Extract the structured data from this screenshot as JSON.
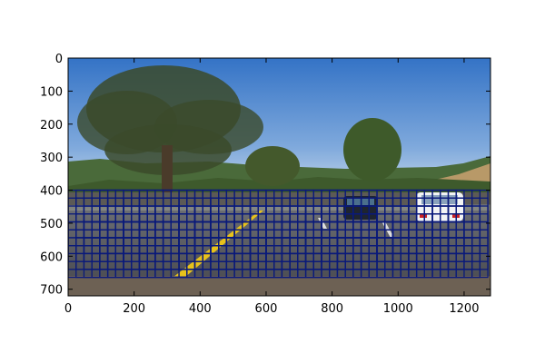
{
  "chart_data": {
    "type": "image-with-grid-overlay",
    "image_size": {
      "width": 1280,
      "height": 720
    },
    "x_ticks": [
      0,
      200,
      400,
      600,
      800,
      1000,
      1200
    ],
    "y_ticks": [
      0,
      100,
      200,
      300,
      400,
      500,
      600,
      700
    ],
    "xlim": [
      0,
      1280
    ],
    "ylim": [
      720,
      0
    ],
    "search_windows": {
      "y_range": [
        400,
        670
      ],
      "x_range": [
        0,
        1280
      ],
      "window": 96,
      "step": 24,
      "color": "#0a1a7a"
    }
  },
  "colors": {
    "sky_top": "#3a78c8",
    "sky_bottom": "#a9c6e6",
    "road": "#55575d",
    "lane_yellow": "#e8c21a"
  }
}
